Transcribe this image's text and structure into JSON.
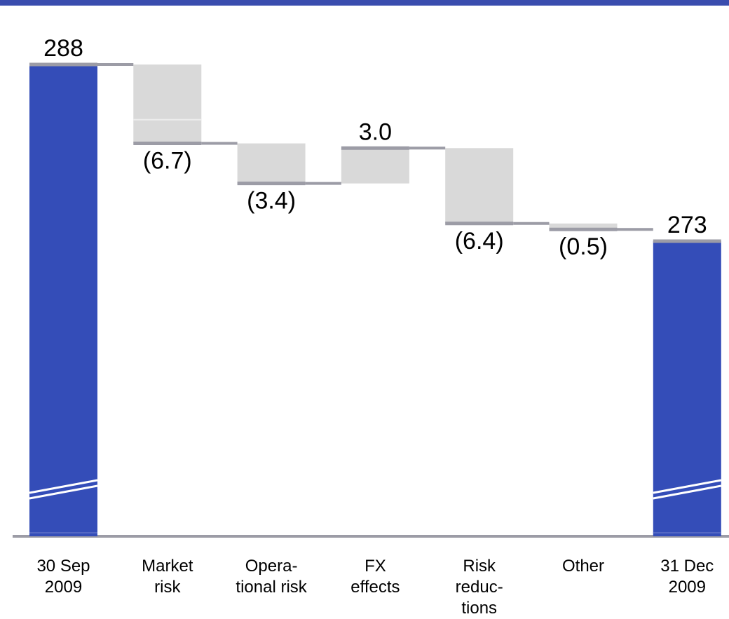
{
  "chart_data": {
    "type": "bar",
    "subtype": "waterfall",
    "title": "",
    "xlabel": "",
    "ylabel": "",
    "categories": [
      [
        "30 Sep",
        "2009"
      ],
      [
        "Market",
        "risk"
      ],
      [
        "Opera-",
        "tional risk"
      ],
      [
        "FX",
        "effects"
      ],
      [
        "Risk",
        "reduc-",
        "tions"
      ],
      [
        "Other"
      ],
      [
        "31 Dec",
        "2009"
      ]
    ],
    "steps": [
      {
        "kind": "total",
        "value": 288,
        "label": "288"
      },
      {
        "kind": "delta",
        "value": -6.7,
        "label": "(6.7)"
      },
      {
        "kind": "delta",
        "value": -3.4,
        "label": "(3.4)"
      },
      {
        "kind": "delta",
        "value": 3.0,
        "label": "3.0"
      },
      {
        "kind": "delta",
        "value": -6.4,
        "label": "(6.4)"
      },
      {
        "kind": "delta",
        "value": -0.5,
        "label": "(0.5)"
      },
      {
        "kind": "total",
        "value": 273,
        "label": "273"
      }
    ],
    "axis_break": true,
    "grid": false,
    "legend": "none",
    "colors": {
      "total": "#344db8",
      "delta": "#d9d9d9",
      "connector": "#9c9ca6",
      "baseline": "#9c9ca6",
      "top_rule": "#3a4dae"
    }
  }
}
